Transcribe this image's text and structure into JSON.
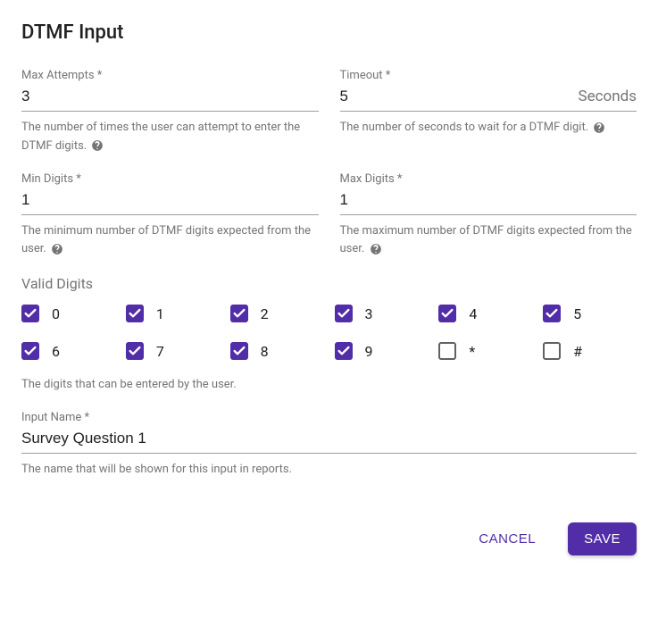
{
  "title": "DTMF Input",
  "colors": {
    "primary": "#512da8",
    "text": "#212121",
    "muted": "#757575",
    "border": "#9e9e9e",
    "checkbox_unchecked_border": "#616161",
    "background": "#ffffff"
  },
  "fields": {
    "maxAttempts": {
      "label": "Max Attempts *",
      "value": "3",
      "help": "The number of times the user can attempt to enter the DTMF digits."
    },
    "timeout": {
      "label": "Timeout *",
      "value": "5",
      "suffix": "Seconds",
      "help": "The number of seconds to wait for a DTMF digit."
    },
    "minDigits": {
      "label": "Min Digits *",
      "value": "1",
      "help": "The minimum number of DTMF digits expected from the user."
    },
    "maxDigits": {
      "label": "Max Digits *",
      "value": "1",
      "help": "The maximum number of DTMF digits expected from the user."
    },
    "inputName": {
      "label": "Input Name *",
      "value": "Survey Question 1",
      "help": "The name that will be shown for this input in reports."
    }
  },
  "validDigits": {
    "label": "Valid Digits",
    "help": "The digits that can be entered by the user.",
    "items": [
      {
        "label": "0",
        "checked": true
      },
      {
        "label": "1",
        "checked": true
      },
      {
        "label": "2",
        "checked": true
      },
      {
        "label": "3",
        "checked": true
      },
      {
        "label": "4",
        "checked": true
      },
      {
        "label": "5",
        "checked": true
      },
      {
        "label": "6",
        "checked": true
      },
      {
        "label": "7",
        "checked": true
      },
      {
        "label": "8",
        "checked": true
      },
      {
        "label": "9",
        "checked": true
      },
      {
        "label": "*",
        "checked": false
      },
      {
        "label": "#",
        "checked": false
      }
    ]
  },
  "actions": {
    "cancel": "CANCEL",
    "save": "SAVE"
  }
}
